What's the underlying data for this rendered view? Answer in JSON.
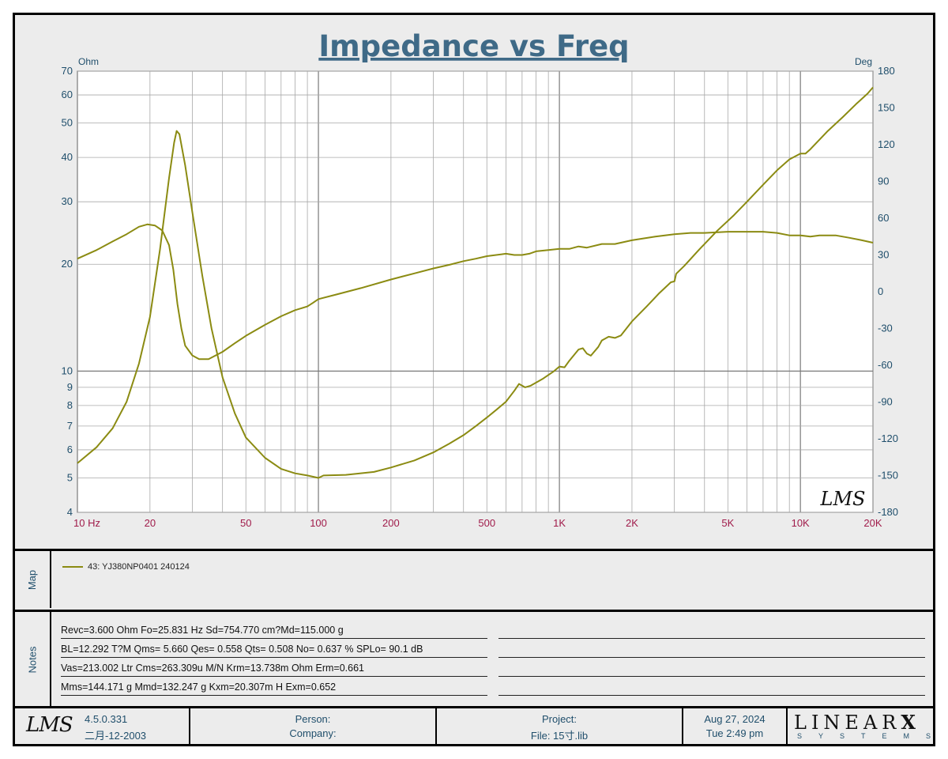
{
  "chart_data": {
    "type": "line",
    "title": "Impedance vs Freq",
    "x_scale": "log",
    "xlim": [
      10,
      20000
    ],
    "x_ticks": [
      {
        "v": 10,
        "label": "10  Hz"
      },
      {
        "v": 20,
        "label": "20"
      },
      {
        "v": 50,
        "label": "50"
      },
      {
        "v": 100,
        "label": "100"
      },
      {
        "v": 200,
        "label": "200"
      },
      {
        "v": 500,
        "label": "500"
      },
      {
        "v": 1000,
        "label": "1K"
      },
      {
        "v": 2000,
        "label": "2K"
      },
      {
        "v": 5000,
        "label": "5K"
      },
      {
        "v": 10000,
        "label": "10K"
      },
      {
        "v": 20000,
        "label": "20K"
      }
    ],
    "y_left": {
      "unit": "Ohm",
      "scale": "log",
      "range": [
        4,
        70
      ],
      "ticks": [
        {
          "v": 70,
          "label": "70"
        },
        {
          "v": 60,
          "label": "60"
        },
        {
          "v": 50,
          "label": "50"
        },
        {
          "v": 40,
          "label": "40"
        },
        {
          "v": 30,
          "label": "30"
        },
        {
          "v": 20,
          "label": "20"
        },
        {
          "v": 10,
          "label": "10"
        },
        {
          "v": 9,
          "label": "9"
        },
        {
          "v": 8,
          "label": "8"
        },
        {
          "v": 7,
          "label": "7"
        },
        {
          "v": 6,
          "label": "6"
        },
        {
          "v": 5,
          "label": "5"
        },
        {
          "v": 4,
          "label": "4"
        }
      ]
    },
    "y_right": {
      "unit": "Deg",
      "scale": "linear",
      "range": [
        -180,
        180
      ],
      "ticks": [
        {
          "v": 180,
          "label": "180"
        },
        {
          "v": 150,
          "label": "150"
        },
        {
          "v": 120,
          "label": "120"
        },
        {
          "v": 90,
          "label": "90"
        },
        {
          "v": 60,
          "label": "60"
        },
        {
          "v": 30,
          "label": "30"
        },
        {
          "v": 0,
          "label": "0"
        },
        {
          "v": -30,
          "label": "-30"
        },
        {
          "v": -60,
          "label": "-60"
        },
        {
          "v": -90,
          "label": "-90"
        },
        {
          "v": -120,
          "label": "-120"
        },
        {
          "v": -150,
          "label": "-150"
        },
        {
          "v": -180,
          "label": "-180"
        }
      ]
    },
    "grid": true,
    "watermark": "LMS",
    "series": [
      {
        "axis": "left",
        "color": "#8b8b12",
        "points": [
          [
            10,
            5.5
          ],
          [
            12,
            6.1
          ],
          [
            14,
            6.9
          ],
          [
            16,
            8.2
          ],
          [
            18,
            10.5
          ],
          [
            20,
            14.2
          ],
          [
            22,
            22
          ],
          [
            24,
            35
          ],
          [
            25.2,
            44
          ],
          [
            25.8,
            47.5
          ],
          [
            26.5,
            46.5
          ],
          [
            28,
            38
          ],
          [
            30,
            28
          ],
          [
            33,
            18.5
          ],
          [
            36,
            13.2
          ],
          [
            40,
            9.6
          ],
          [
            45,
            7.6
          ],
          [
            50,
            6.5
          ],
          [
            60,
            5.7
          ],
          [
            70,
            5.3
          ],
          [
            80,
            5.15
          ],
          [
            90,
            5.08
          ],
          [
            100,
            5.0
          ],
          [
            105,
            5.08
          ],
          [
            130,
            5.1
          ],
          [
            170,
            5.2
          ],
          [
            200,
            5.35
          ],
          [
            250,
            5.6
          ],
          [
            300,
            5.9
          ],
          [
            350,
            6.25
          ],
          [
            400,
            6.6
          ],
          [
            450,
            7.0
          ],
          [
            500,
            7.4
          ],
          [
            550,
            7.8
          ],
          [
            600,
            8.2
          ],
          [
            650,
            8.8
          ],
          [
            680,
            9.2
          ],
          [
            720,
            9.0
          ],
          [
            760,
            9.1
          ],
          [
            850,
            9.5
          ],
          [
            950,
            10.0
          ],
          [
            1000,
            10.3
          ],
          [
            1050,
            10.25
          ],
          [
            1100,
            10.7
          ],
          [
            1200,
            11.5
          ],
          [
            1250,
            11.6
          ],
          [
            1300,
            11.2
          ],
          [
            1350,
            11.05
          ],
          [
            1450,
            11.7
          ],
          [
            1500,
            12.2
          ],
          [
            1600,
            12.5
          ],
          [
            1700,
            12.4
          ],
          [
            1800,
            12.6
          ],
          [
            2000,
            13.8
          ],
          [
            2300,
            15.2
          ],
          [
            2600,
            16.6
          ],
          [
            2900,
            17.8
          ],
          [
            3000,
            17.9
          ],
          [
            3050,
            18.8
          ],
          [
            3300,
            19.8
          ],
          [
            3800,
            22.0
          ],
          [
            4500,
            24.8
          ],
          [
            5300,
            27.5
          ],
          [
            6000,
            30.0
          ],
          [
            7000,
            33.5
          ],
          [
            8000,
            36.8
          ],
          [
            9000,
            39.5
          ],
          [
            10000,
            41.0
          ],
          [
            10500,
            41.0
          ],
          [
            11000,
            42.2
          ],
          [
            13000,
            47.5
          ],
          [
            15000,
            52.0
          ],
          [
            17000,
            56.5
          ],
          [
            19000,
            60.5
          ],
          [
            20000,
            63.0
          ]
        ]
      },
      {
        "axis": "right",
        "color": "#8b8b12",
        "points": [
          [
            10,
            27
          ],
          [
            12,
            34
          ],
          [
            14,
            41
          ],
          [
            16,
            47
          ],
          [
            18,
            53
          ],
          [
            19.5,
            55
          ],
          [
            21,
            54
          ],
          [
            22.5,
            50
          ],
          [
            24,
            38
          ],
          [
            25,
            18
          ],
          [
            26,
            -10
          ],
          [
            27,
            -30
          ],
          [
            28,
            -44
          ],
          [
            30,
            -52
          ],
          [
            32,
            -55
          ],
          [
            35,
            -55
          ],
          [
            40,
            -49
          ],
          [
            45,
            -42
          ],
          [
            50,
            -36
          ],
          [
            60,
            -27
          ],
          [
            70,
            -20
          ],
          [
            80,
            -15
          ],
          [
            90,
            -12
          ],
          [
            95,
            -9
          ],
          [
            100,
            -6
          ],
          [
            120,
            -2
          ],
          [
            150,
            3
          ],
          [
            200,
            10
          ],
          [
            250,
            15
          ],
          [
            300,
            19
          ],
          [
            350,
            22
          ],
          [
            400,
            25
          ],
          [
            450,
            27
          ],
          [
            500,
            29
          ],
          [
            600,
            31
          ],
          [
            650,
            30
          ],
          [
            700,
            30
          ],
          [
            750,
            31
          ],
          [
            800,
            33
          ],
          [
            900,
            34
          ],
          [
            1000,
            35
          ],
          [
            1100,
            35
          ],
          [
            1200,
            37
          ],
          [
            1300,
            36
          ],
          [
            1500,
            39
          ],
          [
            1700,
            39
          ],
          [
            2000,
            42
          ],
          [
            2500,
            45
          ],
          [
            3000,
            47
          ],
          [
            3500,
            48
          ],
          [
            4000,
            48
          ],
          [
            5000,
            49
          ],
          [
            6000,
            49
          ],
          [
            7000,
            49
          ],
          [
            8000,
            48
          ],
          [
            9000,
            46
          ],
          [
            10000,
            46
          ],
          [
            11000,
            45
          ],
          [
            12000,
            46
          ],
          [
            14000,
            46
          ],
          [
            16000,
            44
          ],
          [
            18000,
            42
          ],
          [
            20000,
            40
          ]
        ]
      }
    ]
  },
  "map": {
    "label": "Map",
    "legend_entry": "43: YJ380NP0401 240124"
  },
  "notes": {
    "label": "Notes",
    "lines": [
      "Revc=3.600 Ohm  Fo=25.831 Hz  Sd=754.770 cm?Md=115.000 g",
      "BL=12.292 T?M  Qms= 5.660  Qes= 0.558  Qts= 0.508  No= 0.637 %  SPLo= 90.1 dB",
      "Vas=213.002 Ltr  Cms=263.309u M/N  Krm=13.738m Ohm  Erm=0.661",
      "Mms=144.171 g  Mmd=132.247 g  Kxm=20.307m H  Exm=0.652"
    ]
  },
  "footer": {
    "logo": "LMS",
    "version": "4.5.0.331",
    "build_date": "二月-12-2003",
    "person_label": "Person:",
    "company_label": "Company:",
    "project_label": "Project:",
    "file_label": "File: 15寸.lib",
    "date": "Aug 27, 2024",
    "time": "Tue  2:49 pm",
    "brand_main": "LINEAR",
    "brand_x": "X",
    "brand_sub": "SYSTEMS"
  }
}
